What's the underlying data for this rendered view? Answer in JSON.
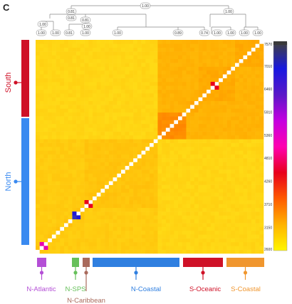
{
  "panel_letter": "C",
  "chart_data": {
    "type": "heatmap",
    "matrix_size": 56,
    "block_sizes": [
      3,
      2,
      2,
      2,
      3,
      18,
      7,
      3,
      9,
      7
    ],
    "populations": [
      {
        "name": "N-Atlantic",
        "color": "#b44fd6",
        "count": 5
      },
      {
        "name": "N-SPS",
        "color": "#66c05a",
        "count": 2
      },
      {
        "name": "N-Caribbean",
        "color": "#a96a5c",
        "count": 2
      },
      {
        "name": "N-Coastal",
        "color": "#2f7fe0",
        "count": 21
      },
      {
        "name": "S-Oceanic",
        "color": "#cf1127",
        "count": 16
      },
      {
        "name": "S-Coastal",
        "color": "#f0962e",
        "count": 10
      }
    ],
    "regions": [
      {
        "name": "South",
        "color": "#cf1127",
        "count": 26
      },
      {
        "name": "North",
        "color": "#3a8af0",
        "count": 30
      }
    ],
    "dendrogram_labels": {
      "root": "1.00",
      "l1_left": "0.81",
      "l1_mid": "0.81",
      "l1_right": "1.00",
      "l2_a": "1.00",
      "l2_b": "0.81",
      "l2_c": "1.00",
      "leaf": [
        "1.00",
        "1.00",
        "0.81",
        "1.00",
        "1.00",
        "0.89",
        "0.74",
        "1.00",
        "1.00",
        "1.00",
        "1.00"
      ]
    },
    "colorscale_ticks": [
      7570,
      7010,
      6460,
      5910,
      5360,
      4810,
      4260,
      3710,
      3150,
      2600
    ],
    "colorscale_range": [
      2600,
      7570
    ],
    "colorscale_stops": [
      "#fff600",
      "#ffb300",
      "#ff5a00",
      "#e8001c",
      "#ff00b0",
      "#c400e0",
      "#5a18c8",
      "#1818e0",
      "#404040"
    ]
  }
}
